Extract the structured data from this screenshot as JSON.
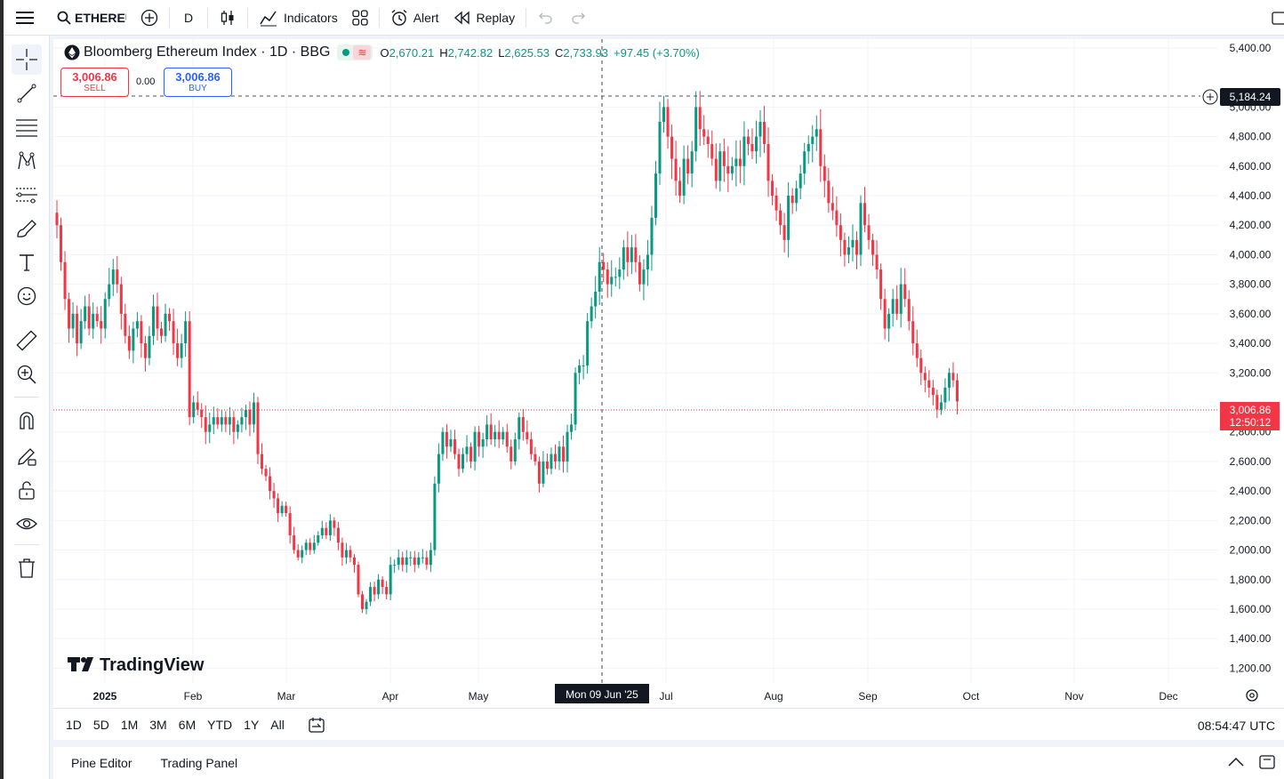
{
  "toolbar": {
    "symbol": "ETHEREU",
    "interval": "D",
    "indicators": "Indicators",
    "alert": "Alert",
    "replay": "Replay"
  },
  "legend": {
    "title": "Bloomberg Ethereum Index · 1D · BBG",
    "o_label": "O",
    "o": "2,670.21",
    "h_label": "H",
    "h": "2,742.82",
    "l_label": "L",
    "l": "2,625.53",
    "c_label": "C",
    "c": "2,733.93",
    "change": "+97.45 (+3.70%)"
  },
  "trade": {
    "sell_price": "3,006.86",
    "sell_label": "SELL",
    "spread": "0.00",
    "buy_price": "3,006.86",
    "buy_label": "BUY"
  },
  "price_axis": {
    "ticks": [
      "5,400.00",
      "5,000.00",
      "4,800.00",
      "4,600.00",
      "4,400.00",
      "4,200.00",
      "4,000.00",
      "3,800.00",
      "3,600.00",
      "3,400.00",
      "3,200.00",
      "2,800.00",
      "2,600.00",
      "2,400.00",
      "2,200.00",
      "2,000.00",
      "1,800.00",
      "1,600.00",
      "1,400.00",
      "1,200.00"
    ],
    "crosshair_price": "5,184.24",
    "last_price": "3,006.86",
    "countdown": "12:50:12"
  },
  "time_axis": {
    "labels": [
      "2025",
      "Feb",
      "Mar",
      "Apr",
      "May",
      "Jul",
      "Aug",
      "Sep",
      "Oct",
      "Nov",
      "Dec"
    ],
    "crosshair_date": "Mon 09 Jun '25"
  },
  "watermark": "TradingView",
  "ranges": [
    "1D",
    "5D",
    "1M",
    "3M",
    "6M",
    "YTD",
    "1Y",
    "All"
  ],
  "clock": "08:54:47 UTC",
  "bottom_tabs": [
    "Pine Editor",
    "Trading Panel"
  ],
  "colors": {
    "up": "#089981",
    "down": "#f23645",
    "accent": "#2962ff"
  },
  "chart_data": {
    "type": "candlestick",
    "y_range": [
      1100,
      5460
    ],
    "candles_close_series_note": "",
    "closes": [
      4200,
      3950,
      3700,
      3500,
      3600,
      3400,
      3550,
      3650,
      3500,
      3600,
      3550,
      3500,
      3700,
      3800,
      3900,
      3800,
      3600,
      3450,
      3350,
      3500,
      3550,
      3400,
      3300,
      3450,
      3650,
      3500,
      3450,
      3600,
      3550,
      3400,
      3300,
      3400,
      3550,
      2900,
      3000,
      2950,
      2900,
      2800,
      2850,
      2900,
      2850,
      2900,
      2850,
      2900,
      2800,
      2850,
      2900,
      2950,
      2850,
      3000,
      2650,
      2550,
      2500,
      2400,
      2350,
      2250,
      2300,
      2250,
      2100,
      2000,
      1950,
      2000,
      2050,
      2000,
      2050,
      2100,
      2150,
      2100,
      2200,
      2150,
      2050,
      1950,
      2000,
      1950,
      1900,
      1700,
      1600,
      1650,
      1750,
      1700,
      1800,
      1750,
      1700,
      1900,
      1900,
      1950,
      1900,
      1950,
      1950,
      1900,
      1950,
      1950,
      1900,
      2000,
      2450,
      2650,
      2800,
      2700,
      2750,
      2650,
      2550,
      2650,
      2700,
      2600,
      2800,
      2700,
      2750,
      2850,
      2750,
      2800,
      2750,
      2800,
      2700,
      2600,
      2750,
      2900,
      2800,
      2750,
      2650,
      2600,
      2450,
      2600,
      2550,
      2650,
      2600,
      2700,
      2600,
      2800,
      2850,
      3200,
      3250,
      3250,
      3550,
      3650,
      3750,
      3950,
      3900,
      3800,
      3850,
      3850,
      3900,
      4050,
      3950,
      4050,
      3950,
      3800,
      3900,
      4000,
      4250,
      4550,
      4900,
      5000,
      4800,
      4650,
      4500,
      4400,
      4650,
      4550,
      4700,
      5000,
      4850,
      4800,
      4750,
      4650,
      4500,
      4700,
      4600,
      4550,
      4600,
      4650,
      4600,
      4800,
      4750,
      4700,
      4800,
      4900,
      4750,
      4500,
      4400,
      4300,
      4200,
      4100,
      4400,
      4350,
      4450,
      4550,
      4700,
      4750,
      4800,
      4850,
      4600,
      4500,
      4350,
      4300,
      4200,
      4100,
      4000,
      4050,
      4100,
      4000,
      4350,
      4200,
      4100,
      4000,
      3900,
      3700,
      3500,
      3600,
      3700,
      3600,
      3800,
      3700,
      3550,
      3400,
      3300,
      3200,
      3150,
      3100,
      3050,
      2950,
      3000,
      3100,
      3200,
      3150,
      3006
    ]
  }
}
